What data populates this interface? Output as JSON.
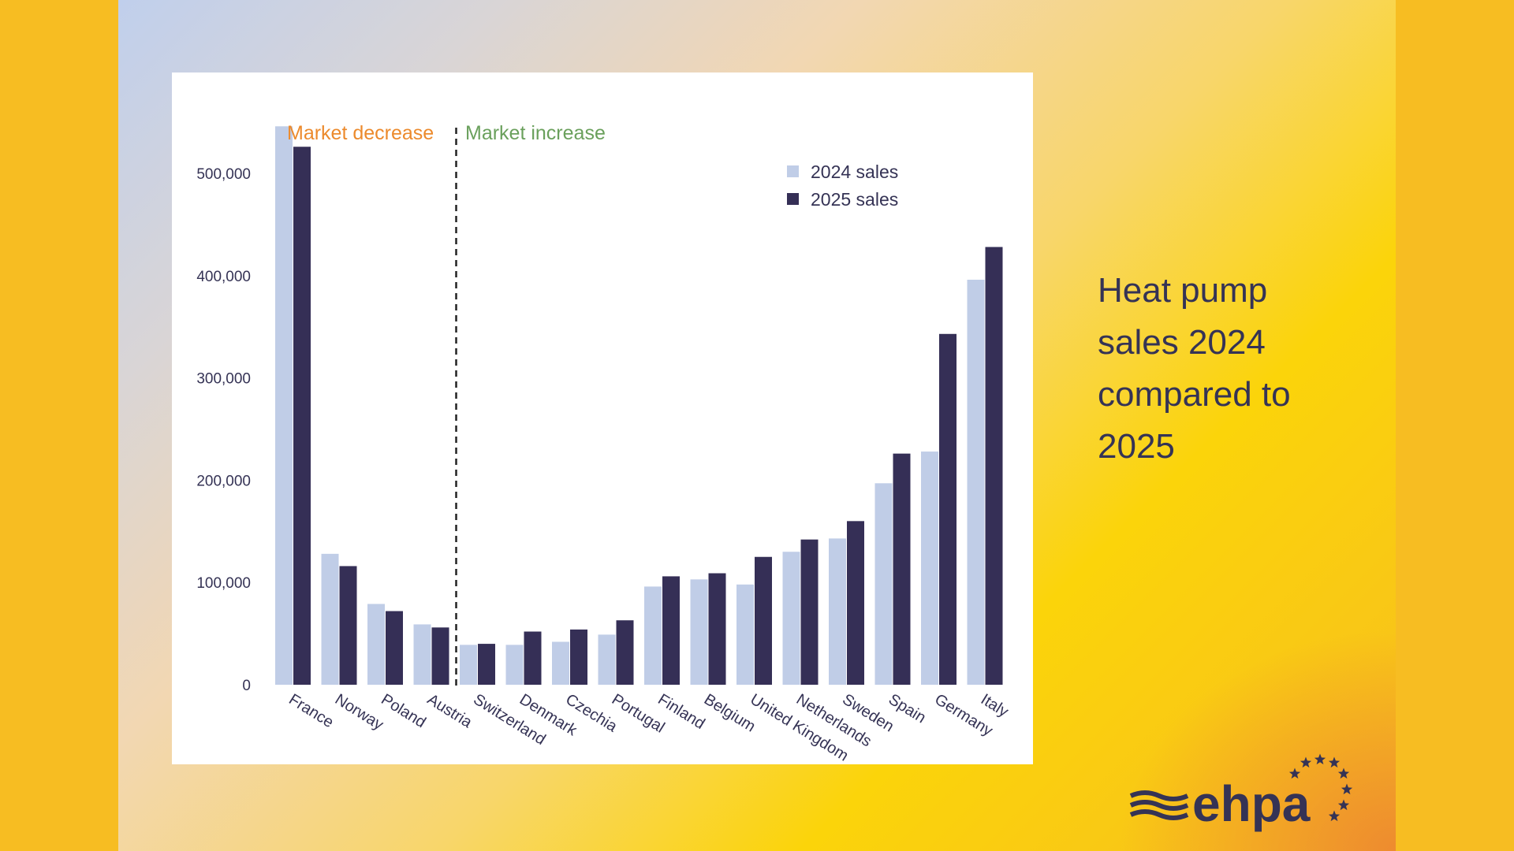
{
  "title": "Heat pump sales 2024 compared to 2025",
  "logo_text": "ehpa",
  "colors": {
    "s2024": "#c0cde7",
    "s2025": "#352f56",
    "decrease": "#ec8a2c",
    "increase": "#6aa05c",
    "text": "#353355"
  },
  "chart_data": {
    "type": "bar",
    "categories": [
      "France",
      "Norway",
      "Poland",
      "Austria",
      "Switzerland",
      "Denmark",
      "Czechia",
      "Portugal",
      "Finland",
      "Belgium",
      "United Kingdom",
      "Netherlands",
      "Sweden",
      "Spain",
      "Germany",
      "Italy"
    ],
    "series": [
      {
        "name": "2024 sales",
        "values": [
          546000,
          128000,
          79000,
          59000,
          39000,
          39000,
          42000,
          49000,
          96000,
          103000,
          98000,
          130000,
          143000,
          197000,
          228000,
          396000
        ]
      },
      {
        "name": "2025 sales",
        "values": [
          526000,
          116000,
          72000,
          56000,
          40000,
          52000,
          54000,
          63000,
          106000,
          109000,
          125000,
          142000,
          160000,
          226000,
          343000,
          428000
        ]
      }
    ],
    "yticks": [
      0,
      100000,
      200000,
      300000,
      400000,
      500000
    ],
    "ytick_labels": [
      "0",
      "100,000",
      "200,000",
      "300,000",
      "400,000",
      "500,000"
    ],
    "ylim": [
      0,
      560000
    ],
    "annotations": {
      "decrease": "Market decrease",
      "increase": "Market increase",
      "divider_after_category": "Austria"
    },
    "legend_position": "top-right",
    "xlabel": "",
    "ylabel": "",
    "grid": false
  }
}
